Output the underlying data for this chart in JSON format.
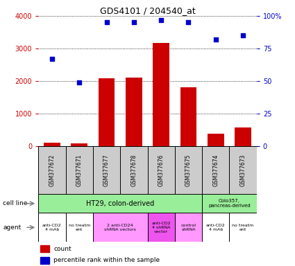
{
  "title": "GDS4101 / 204540_at",
  "samples": [
    "GSM377672",
    "GSM377671",
    "GSM377677",
    "GSM377678",
    "GSM377676",
    "GSM377675",
    "GSM377674",
    "GSM377673"
  ],
  "counts": [
    120,
    80,
    2080,
    2110,
    3180,
    1810,
    380,
    580
  ],
  "percentiles": [
    67,
    49,
    95,
    95,
    97,
    95,
    82,
    85
  ],
  "left_ylim": [
    0,
    4000
  ],
  "left_yticks": [
    0,
    1000,
    2000,
    3000,
    4000
  ],
  "right_ylim": [
    0,
    100
  ],
  "right_yticks": [
    0,
    25,
    50,
    75,
    100
  ],
  "bar_color": "#cc0000",
  "dot_color": "#0000cc",
  "cell_line_ht29_label": "HT29, colon-derived",
  "cell_line_colo_label": "Colo357,\npancreas-derived",
  "cell_line_color": "#99ee99",
  "agent_groups": [
    {
      "label": "anti-CD2\n4 mAb",
      "start": 0,
      "end": 1,
      "color": "#ffffff"
    },
    {
      "label": "no treatm\nent",
      "start": 1,
      "end": 2,
      "color": "#ffffff"
    },
    {
      "label": "2 anti-CD24\nshRNA vectors",
      "start": 2,
      "end": 4,
      "color": "#ff99ff"
    },
    {
      "label": "anti-CD2\n4 shRNA\nvector",
      "start": 4,
      "end": 5,
      "color": "#ee55ee"
    },
    {
      "label": "control\nshRNA",
      "start": 5,
      "end": 6,
      "color": "#ff99ff"
    },
    {
      "label": "anti-CD2\n4 mAb",
      "start": 6,
      "end": 7,
      "color": "#ffffff"
    },
    {
      "label": "no treatm\nent",
      "start": 7,
      "end": 8,
      "color": "#ffffff"
    }
  ],
  "left_label_color": "#cc0000",
  "right_label_color": "#0000cc",
  "sample_box_color": "#cccccc",
  "grid_color": "#000000"
}
